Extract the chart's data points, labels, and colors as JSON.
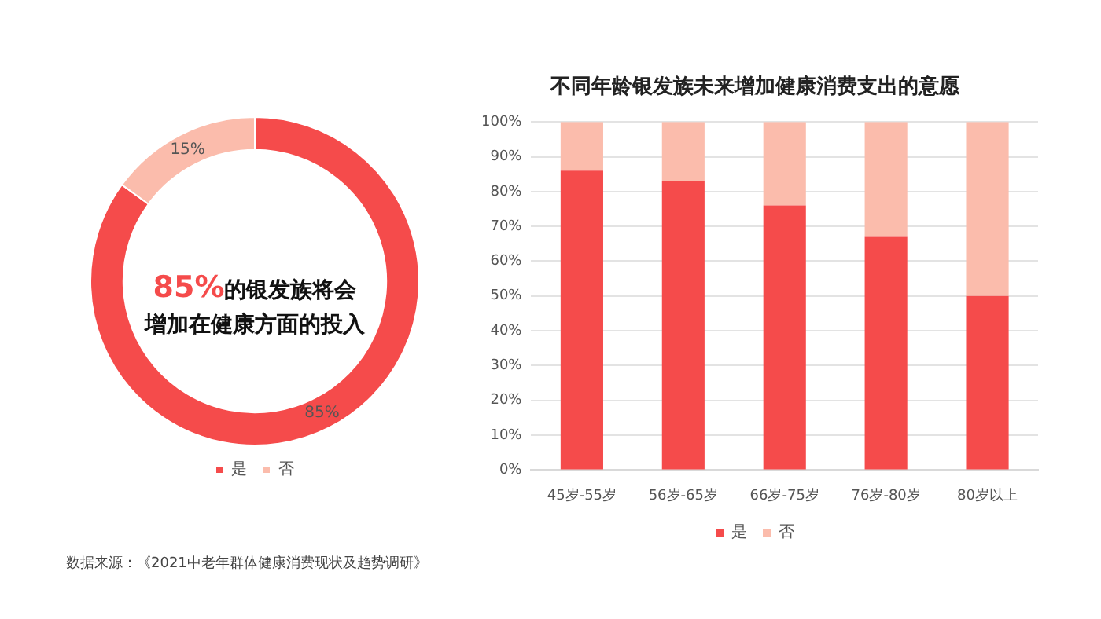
{
  "chart_data": [
    {
      "type": "donut",
      "categories": [
        "是",
        "否"
      ],
      "values": [
        85,
        15
      ],
      "colors": [
        "#f54b4b",
        "#fbbcac"
      ],
      "value_labels": [
        "85%",
        "15%"
      ],
      "legend": "bottom",
      "annotations": [
        "85%",
        "的银发族将会",
        "增加在健康方面的投入",
        "数据来源：《2021中老年群体健康消费现状及趋势调研》"
      ]
    },
    {
      "type": "bar",
      "title": "不同年龄银发族未来增加健康消费支出的意愿",
      "categories": [
        "45岁-55岁",
        "56岁-65岁",
        "66岁-75岁",
        "76岁-80岁",
        "80岁以上"
      ],
      "stacked": true,
      "series": [
        {
          "name": "是",
          "color": "#f54b4b",
          "values": [
            86,
            83,
            76,
            67,
            50
          ]
        },
        {
          "name": "否",
          "color": "#fbbcac",
          "values": [
            14,
            17,
            24,
            33,
            50
          ]
        }
      ],
      "ylim": [
        0,
        100
      ],
      "yticks": [
        {
          "value": 0,
          "label": "0%"
        },
        {
          "value": 10,
          "label": "10%"
        },
        {
          "value": 20,
          "label": "20%"
        },
        {
          "value": 30,
          "label": "30%"
        },
        {
          "value": 40,
          "label": "40%"
        },
        {
          "value": 50,
          "label": "50%"
        },
        {
          "value": 60,
          "label": "60%"
        },
        {
          "value": 70,
          "label": "70%"
        },
        {
          "value": 80,
          "label": "80%"
        },
        {
          "value": 90,
          "label": "90%"
        },
        {
          "value": 100,
          "label": "100%"
        }
      ],
      "grid": "y",
      "legend": "bottom"
    }
  ]
}
